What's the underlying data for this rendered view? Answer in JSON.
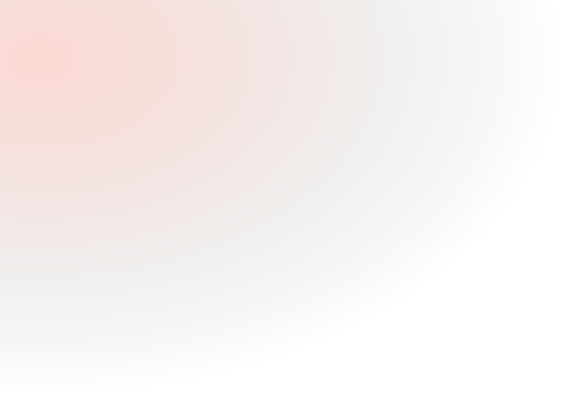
{
  "background": {
    "type": "radial-gradient",
    "colors": [
      "#fcd9d3",
      "#f2e6e4",
      "#f1efee",
      "#ffffff"
    ]
  }
}
